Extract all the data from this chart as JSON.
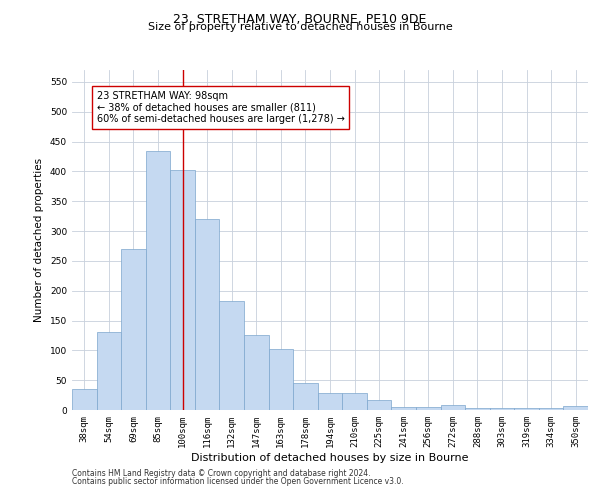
{
  "title1": "23, STRETHAM WAY, BOURNE, PE10 9DE",
  "title2": "Size of property relative to detached houses in Bourne",
  "xlabel": "Distribution of detached houses by size in Bourne",
  "ylabel": "Number of detached properties",
  "categories": [
    "38sqm",
    "54sqm",
    "69sqm",
    "85sqm",
    "100sqm",
    "116sqm",
    "132sqm",
    "147sqm",
    "163sqm",
    "178sqm",
    "194sqm",
    "210sqm",
    "225sqm",
    "241sqm",
    "256sqm",
    "272sqm",
    "288sqm",
    "303sqm",
    "319sqm",
    "334sqm",
    "350sqm"
  ],
  "values": [
    35,
    130,
    270,
    435,
    403,
    320,
    183,
    125,
    103,
    45,
    28,
    28,
    16,
    5,
    5,
    9,
    3,
    3,
    3,
    3,
    6
  ],
  "bar_color": "#c5d9f1",
  "bar_edge_color": "#7ca6cd",
  "vline_x": 4,
  "vline_color": "#cc0000",
  "annotation_text": "23 STRETHAM WAY: 98sqm\n← 38% of detached houses are smaller (811)\n60% of semi-detached houses are larger (1,278) →",
  "annotation_box_color": "#ffffff",
  "annotation_box_edge": "#cc0000",
  "ylim": [
    0,
    570
  ],
  "yticks": [
    0,
    50,
    100,
    150,
    200,
    250,
    300,
    350,
    400,
    450,
    500,
    550
  ],
  "footer1": "Contains HM Land Registry data © Crown copyright and database right 2024.",
  "footer2": "Contains public sector information licensed under the Open Government Licence v3.0.",
  "bg_color": "#ffffff",
  "grid_color": "#c8d0dc",
  "title1_fontsize": 9,
  "title2_fontsize": 8,
  "ylabel_fontsize": 7.5,
  "xlabel_fontsize": 8,
  "tick_fontsize": 6.5,
  "annotation_fontsize": 7,
  "footer_fontsize": 5.5
}
